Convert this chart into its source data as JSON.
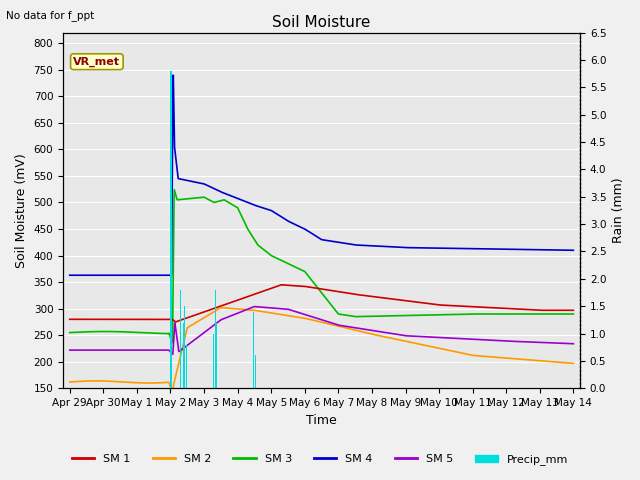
{
  "title": "Soil Moisture",
  "top_left_text": "No data for f_ppt",
  "xlabel": "Time",
  "ylabel_left": "Soil Moisture (mV)",
  "ylabel_right": "Rain (mm)",
  "ylim_left": [
    150,
    820
  ],
  "ylim_right": [
    0.0,
    6.5
  ],
  "yticks_left": [
    150,
    200,
    250,
    300,
    350,
    400,
    450,
    500,
    550,
    600,
    650,
    700,
    750,
    800
  ],
  "yticks_right": [
    0.0,
    0.5,
    1.0,
    1.5,
    2.0,
    2.5,
    3.0,
    3.5,
    4.0,
    4.5,
    5.0,
    5.5,
    6.0,
    6.5
  ],
  "bg_color": "#f0f0f0",
  "plot_bg_color": "#e8e8e8",
  "sm1_color": "#cc0000",
  "sm2_color": "#ff9900",
  "sm3_color": "#00bb00",
  "sm4_color": "#0000cc",
  "sm5_color": "#9900cc",
  "precip_color": "#00dddd",
  "legend_label_sm1": "SM 1",
  "legend_label_sm2": "SM 2",
  "legend_label_sm3": "SM 3",
  "legend_label_sm4": "SM 4",
  "legend_label_sm5": "SM 5",
  "legend_label_precip": "Precip_mm",
  "vr_met_label": "VR_met",
  "xtick_labels": [
    "Apr 29",
    "Apr 30",
    "May 1",
    "May 2",
    "May 3",
    "May 4",
    "May 5",
    "May 6",
    "May 7",
    "May 8",
    "May 9",
    "May 10",
    "May 11",
    "May 12",
    "May 13",
    "May 14"
  ],
  "n_days": 16,
  "title_fontsize": 11,
  "axis_label_fontsize": 9,
  "tick_fontsize": 7.5
}
